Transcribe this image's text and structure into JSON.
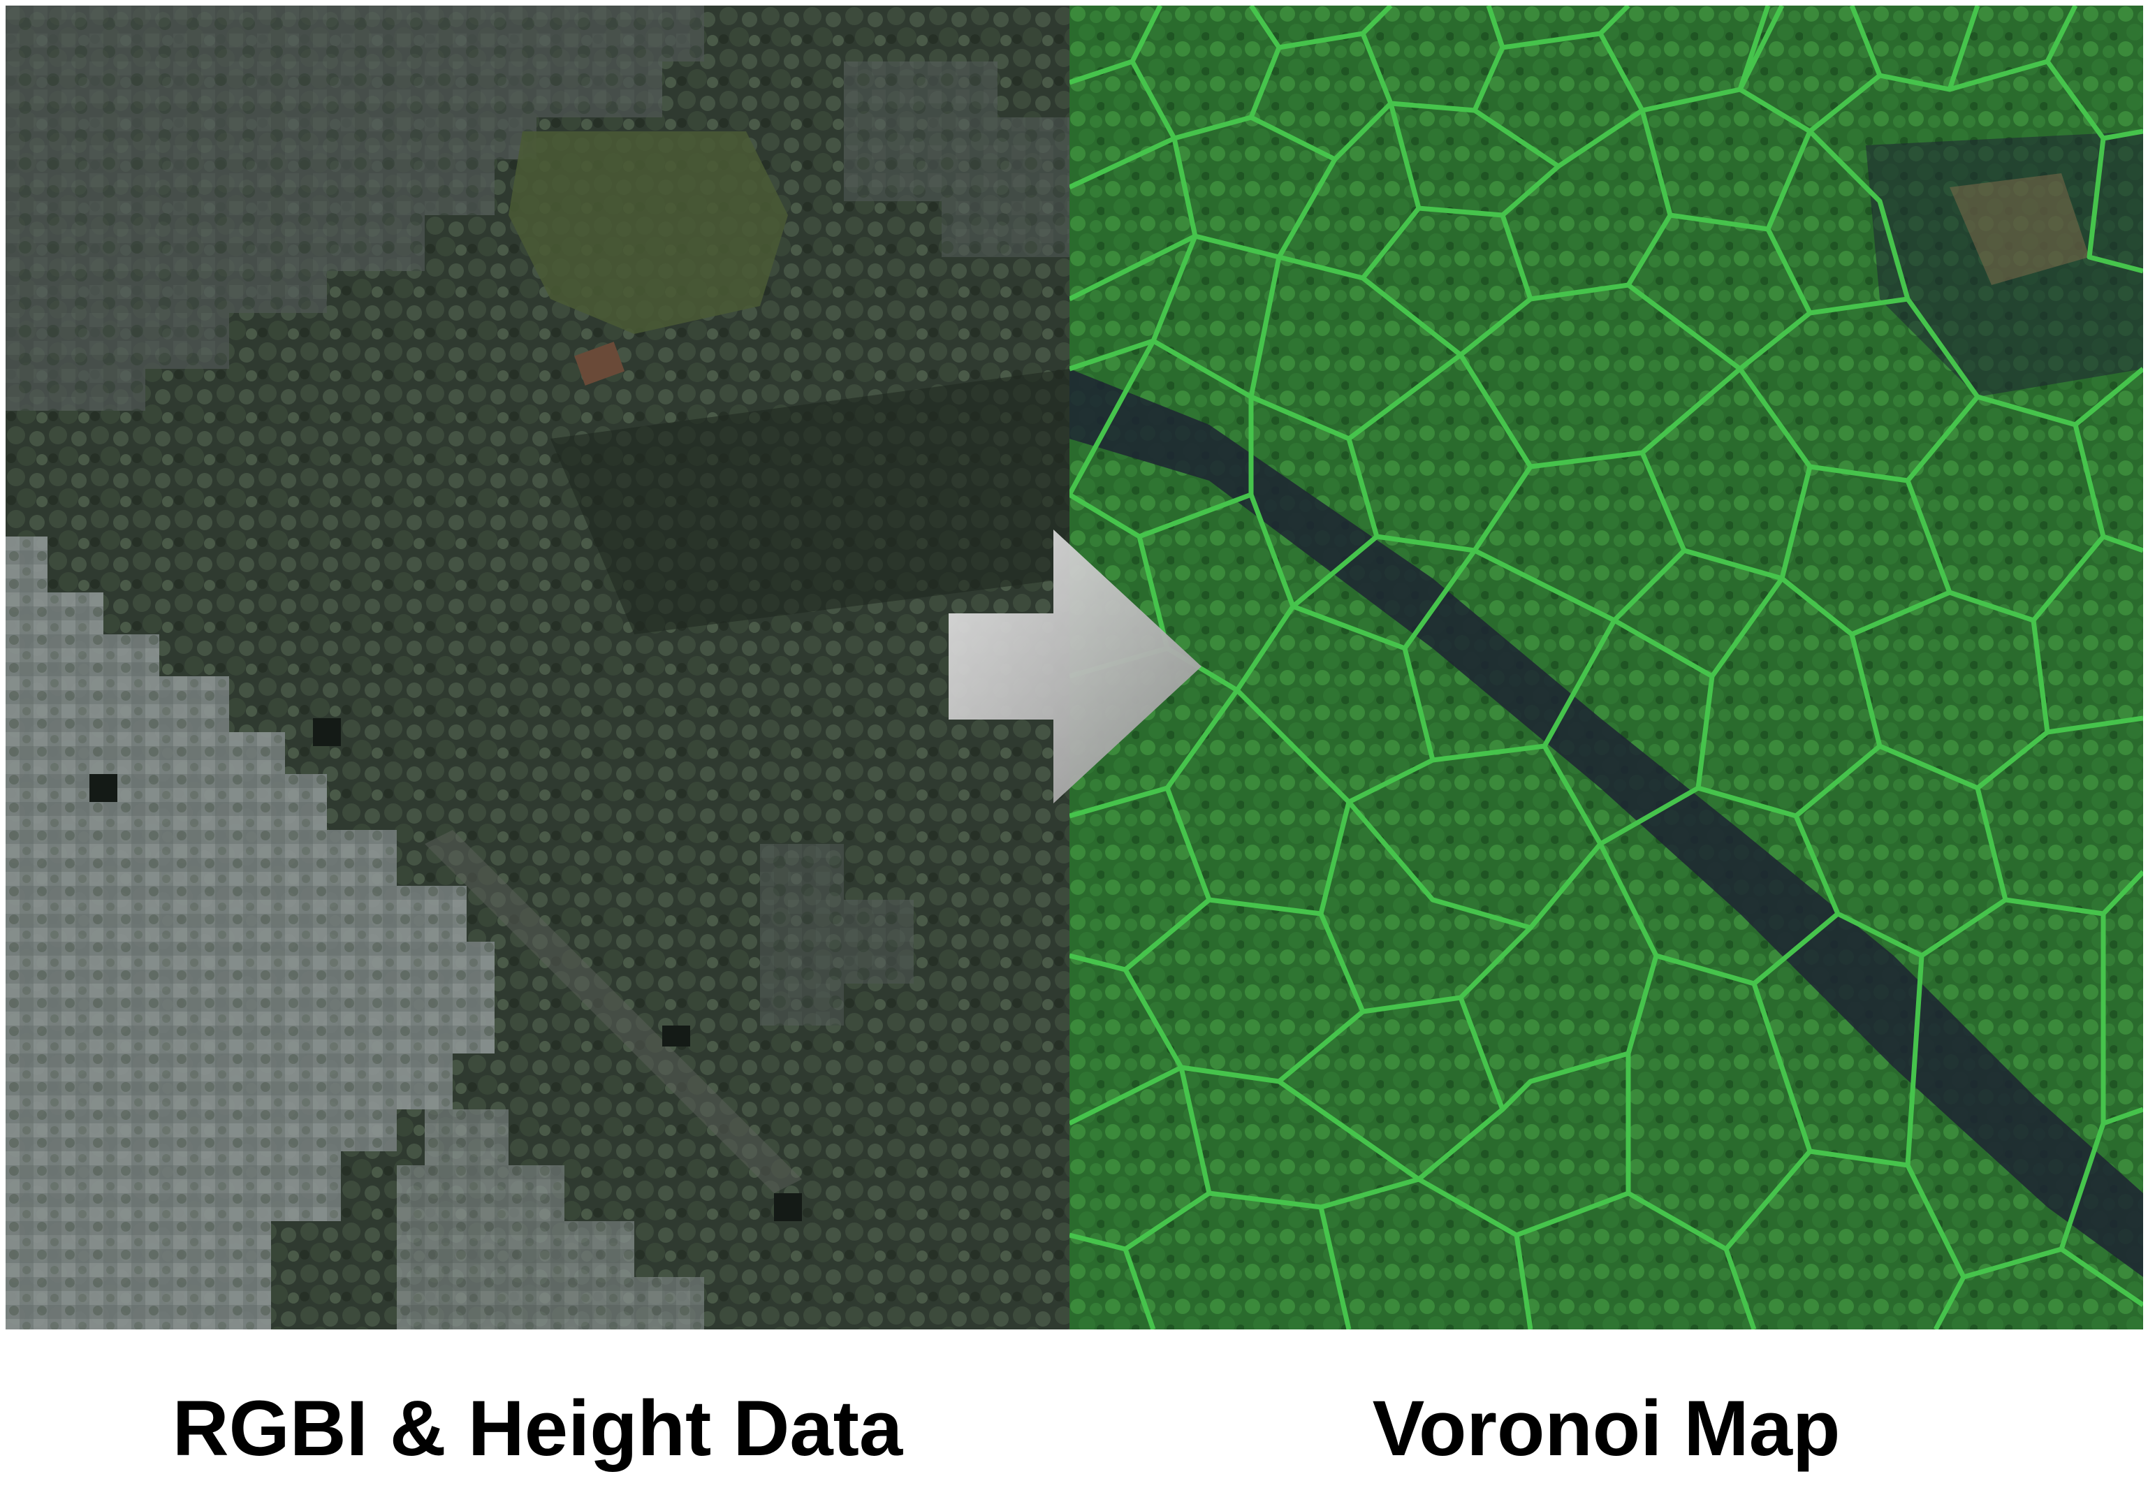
{
  "captions": {
    "left": "RGBI & Height Data",
    "right": "Voronoi Map"
  },
  "colors": {
    "background": "#ffffff",
    "caption_text": "#000000",
    "forest_dark": "#2f3630",
    "canopy_grey": "#8a9190",
    "voronoi_fill": "#2f7a30",
    "voronoi_edge": "#44c24a",
    "river": "#1d2433",
    "arrow_light": "#e6e6e6",
    "arrow_dark": "#8f8f8f"
  },
  "icons": {
    "arrow": "right-arrow-icon"
  }
}
